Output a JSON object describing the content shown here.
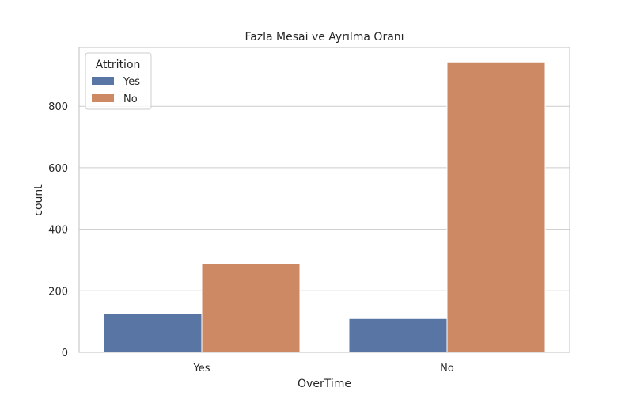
{
  "chart_data": {
    "type": "bar",
    "title": "Fazla Mesai ve Ayrılma Oranı",
    "xlabel": "OverTime",
    "ylabel": "count",
    "categories": [
      "Yes",
      "No"
    ],
    "series": [
      {
        "name": "Yes",
        "color": "#5975a4",
        "values": [
          127,
          110
        ]
      },
      {
        "name": "No",
        "color": "#cc8963",
        "values": [
          289,
          944
        ]
      }
    ],
    "ylim": [
      0,
      991
    ],
    "yticks": [
      0,
      200,
      400,
      600,
      800
    ],
    "legend": {
      "title": "Attrition",
      "placement": "top-left"
    },
    "grid": {
      "y": true,
      "x": false,
      "color": "#cccccc"
    }
  }
}
